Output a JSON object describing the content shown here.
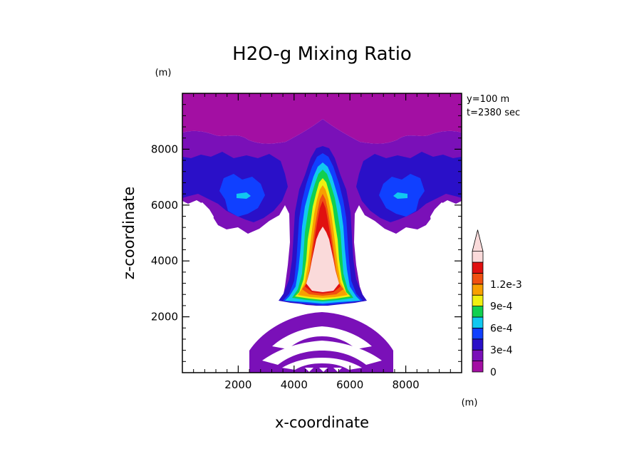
{
  "chart_data": {
    "type": "heatmap",
    "title": "H2O-g Mixing Ratio",
    "xlabel": "x-coordinate",
    "ylabel": "z-coordinate",
    "x_unit": "(m)",
    "y_unit": "(m)",
    "annotations": [
      "y=100 m",
      "t=2380 sec"
    ],
    "xlim": [
      0,
      10000
    ],
    "ylim": [
      0,
      10000
    ],
    "x_ticks": [
      2000,
      4000,
      6000,
      8000
    ],
    "y_ticks": [
      2000,
      4000,
      6000,
      8000
    ],
    "colorbar": {
      "labels": [
        {
          "value": 0,
          "text": "0"
        },
        {
          "value": 0.0003,
          "text": "3e-4"
        },
        {
          "value": 0.0006,
          "text": "6e-4"
        },
        {
          "value": 0.0009,
          "text": "9e-4"
        },
        {
          "value": 0.0012,
          "text": "1.2e-3"
        }
      ],
      "levels": [
        0,
        0.00015,
        0.0003,
        0.00045,
        0.0006,
        0.00075,
        0.0009,
        0.00105,
        0.0012,
        0.00135
      ],
      "colors": [
        "#a30fa3",
        "#7a10b8",
        "#2a10c8",
        "#1040ff",
        "#10c8f0",
        "#10d050",
        "#f0f010",
        "#f8a000",
        "#f05010",
        "#e01010",
        "#fadada"
      ],
      "extend_max": true
    }
  }
}
